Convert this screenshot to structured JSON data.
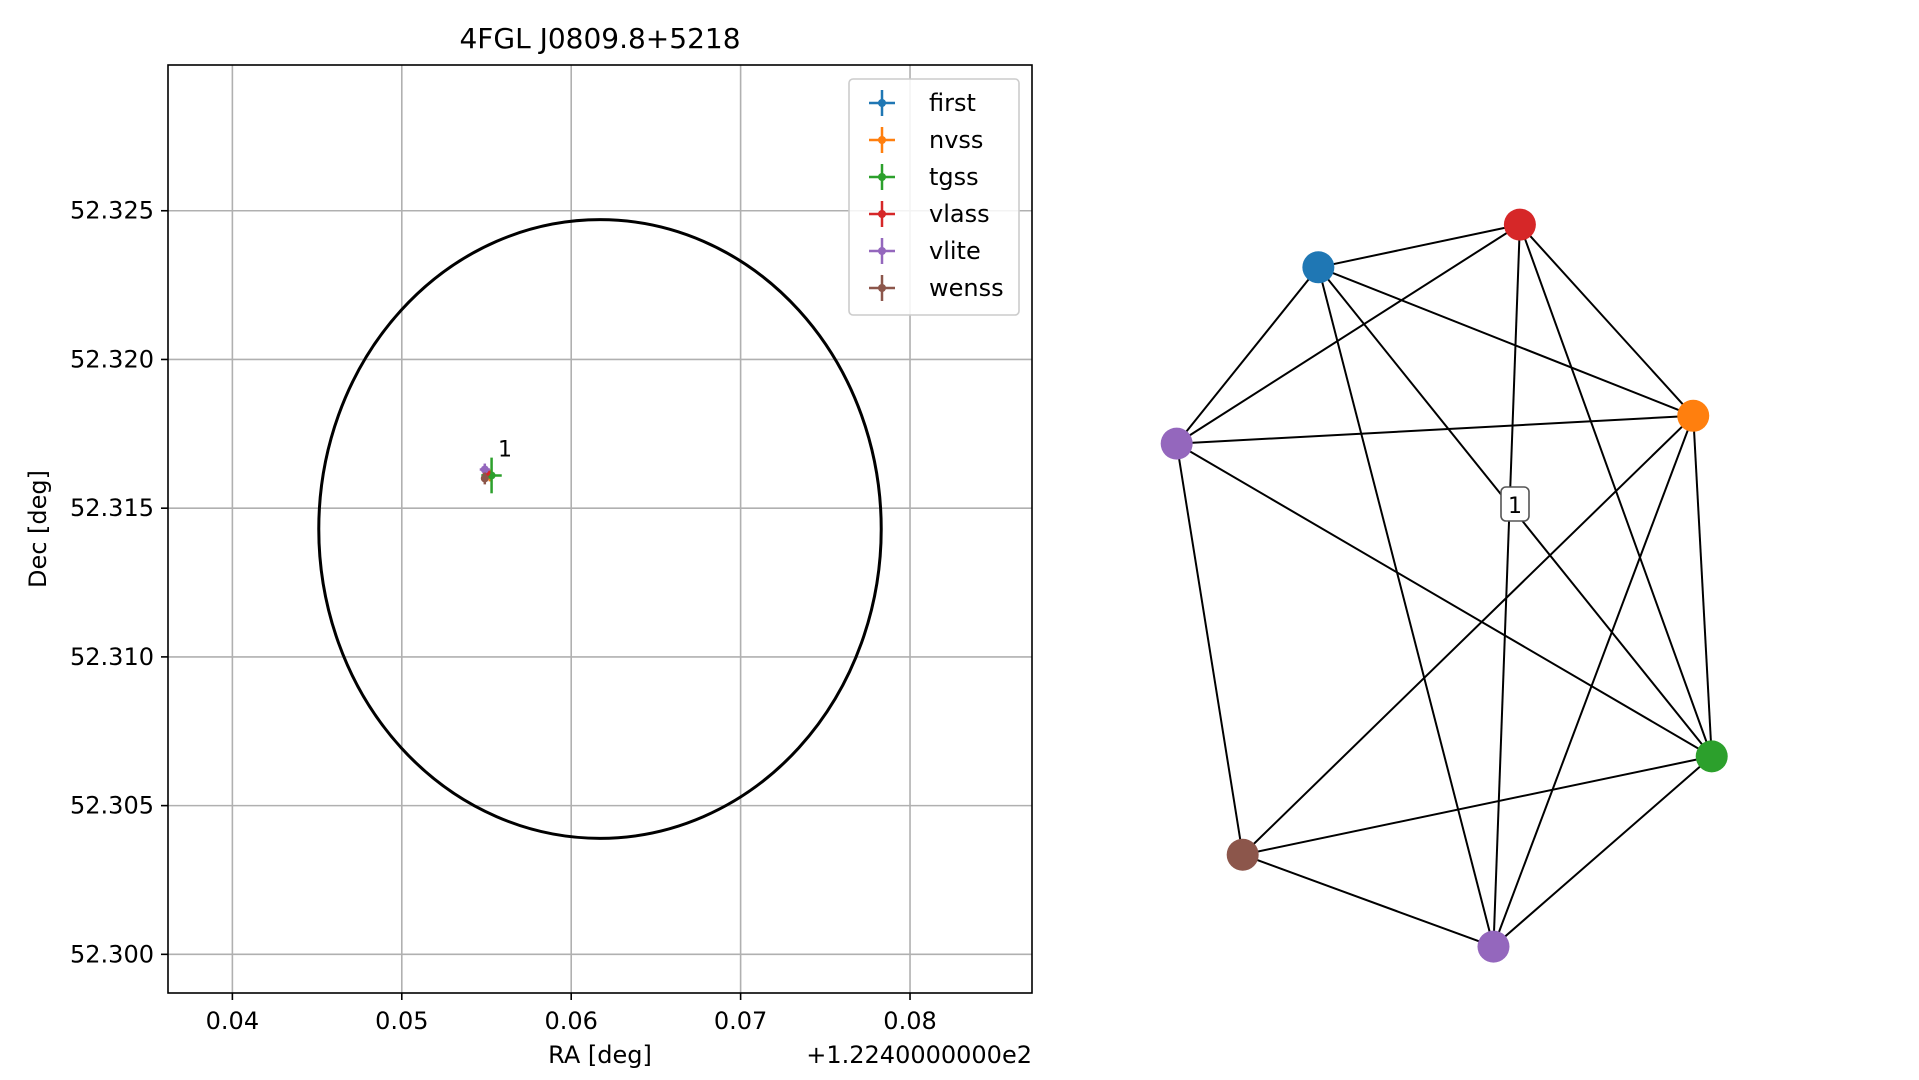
{
  "chart_data": [
    {
      "type": "scatter",
      "title": "4FGL J0809.8+5218",
      "xlabel": "RA [deg]",
      "ylabel": "Dec [deg]",
      "x_offset_label": "+1.2240000000e2",
      "xlim": [
        0.0362,
        0.0872
      ],
      "ylim": [
        52.2987,
        52.3299
      ],
      "xticks": [
        0.04,
        0.05,
        0.06,
        0.07,
        0.08
      ],
      "xtick_labels": [
        "0.04",
        "0.05",
        "0.06",
        "0.07",
        "0.08"
      ],
      "yticks": [
        52.3,
        52.305,
        52.31,
        52.315,
        52.32,
        52.325
      ],
      "ytick_labels": [
        "52.300",
        "52.305",
        "52.310",
        "52.315",
        "52.320",
        "52.325"
      ],
      "grid": true,
      "legend_position": "top-right",
      "ellipse": {
        "center_x": 0.0617,
        "center_y": 52.3143,
        "semi_axis_x": 0.0166,
        "semi_axis_y": 0.0104,
        "color": "#000000"
      },
      "series": [
        {
          "name": "first",
          "color": "#1f77b4",
          "points": [
            {
              "x": 0.055,
              "y": 52.3161,
              "xerr": 0.0003,
              "yerr": 0.0001
            }
          ]
        },
        {
          "name": "nvss",
          "color": "#ff7f0e",
          "points": [
            {
              "x": 0.0552,
              "y": 52.3161,
              "xerr": 0.0002,
              "yerr": 0.0002
            }
          ]
        },
        {
          "name": "tgss",
          "color": "#2ca02c",
          "points": [
            {
              "x": 0.0553,
              "y": 52.3161,
              "xerr": 0.0006,
              "yerr": 0.0006
            }
          ]
        },
        {
          "name": "vlass",
          "color": "#d62728",
          "points": [
            {
              "x": 0.055,
              "y": 52.3162,
              "xerr": 0.0001,
              "yerr": 0.0001
            }
          ]
        },
        {
          "name": "vlite",
          "color": "#9467bd",
          "points": [
            {
              "x": 0.0549,
              "y": 52.3163,
              "xerr": 0.0003,
              "yerr": 0.0002
            }
          ]
        },
        {
          "name": "wenss",
          "color": "#8c564b",
          "points": [
            {
              "x": 0.0549,
              "y": 52.316,
              "xerr": 0.0002,
              "yerr": 0.0002
            }
          ]
        }
      ],
      "annotations": [
        {
          "text": "1",
          "x": 0.0555,
          "y": 52.3166
        }
      ]
    },
    {
      "type": "network",
      "label": "1",
      "edge_color": "#000000",
      "nodes": [
        {
          "id": "first",
          "color": "#1f77b4",
          "x": 0.297,
          "y": 0.218
        },
        {
          "id": "vlass",
          "color": "#d62728",
          "x": 0.526,
          "y": 0.172
        },
        {
          "id": "nvss",
          "color": "#ff7f0e",
          "x": 0.723,
          "y": 0.378
        },
        {
          "id": "vlite",
          "color": "#9467bd",
          "x": 0.136,
          "y": 0.408
        },
        {
          "id": "tgss",
          "color": "#2ca02c",
          "x": 0.744,
          "y": 0.745
        },
        {
          "id": "wenss",
          "color": "#8c564b",
          "x": 0.211,
          "y": 0.851
        },
        {
          "id": "vlite_2",
          "color": "#9467bd",
          "x": 0.496,
          "y": 0.95
        }
      ],
      "edges": [
        [
          "first",
          "vlass"
        ],
        [
          "first",
          "nvss"
        ],
        [
          "first",
          "vlite"
        ],
        [
          "first",
          "tgss"
        ],
        [
          "first",
          "vlite_2"
        ],
        [
          "vlass",
          "nvss"
        ],
        [
          "vlass",
          "vlite"
        ],
        [
          "vlass",
          "tgss"
        ],
        [
          "vlass",
          "vlite_2"
        ],
        [
          "nvss",
          "vlite"
        ],
        [
          "nvss",
          "tgss"
        ],
        [
          "nvss",
          "wenss"
        ],
        [
          "nvss",
          "vlite_2"
        ],
        [
          "vlite",
          "tgss"
        ],
        [
          "vlite",
          "wenss"
        ],
        [
          "tgss",
          "wenss"
        ],
        [
          "tgss",
          "vlite_2"
        ],
        [
          "wenss",
          "vlite_2"
        ]
      ]
    }
  ]
}
